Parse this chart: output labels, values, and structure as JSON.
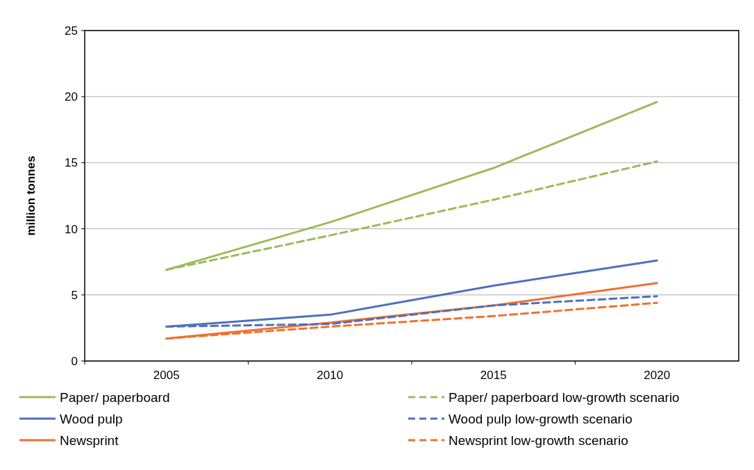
{
  "chart_data": {
    "type": "line",
    "ylabel": "million tonnes",
    "categories": [
      "2005",
      "2010",
      "2015",
      "2020"
    ],
    "ylim": [
      0,
      25
    ],
    "yticks": [
      0,
      5,
      10,
      15,
      20,
      25
    ],
    "grid": "y",
    "legend": "bottom",
    "marker": "none",
    "series": [
      {
        "name": "Paper/ paperboard",
        "color": "#9bbb59",
        "line_style": "solid",
        "values": [
          6.9,
          10.5,
          14.6,
          19.6
        ]
      },
      {
        "name": "Wood pulp",
        "color": "#4f6fbf",
        "line_style": "solid",
        "values": [
          2.6,
          3.5,
          5.7,
          7.6
        ]
      },
      {
        "name": "Newsprint",
        "color": "#f07030",
        "line_style": "solid",
        "values": [
          1.7,
          2.9,
          4.2,
          5.9
        ]
      },
      {
        "name": "Paper/ paperboard low-growth scenario",
        "color": "#9bbb59",
        "line_style": "dashed",
        "values": [
          6.9,
          9.5,
          12.2,
          15.1
        ]
      },
      {
        "name": "Wood pulp low-growth scenario",
        "color": "#4f6fbf",
        "line_style": "dashed",
        "values": [
          2.6,
          2.8,
          4.2,
          4.9
        ]
      },
      {
        "name": "Newsprint low-growth scenario",
        "color": "#f07030",
        "line_style": "dashed",
        "values": [
          1.7,
          2.6,
          3.4,
          4.4
        ]
      }
    ]
  }
}
